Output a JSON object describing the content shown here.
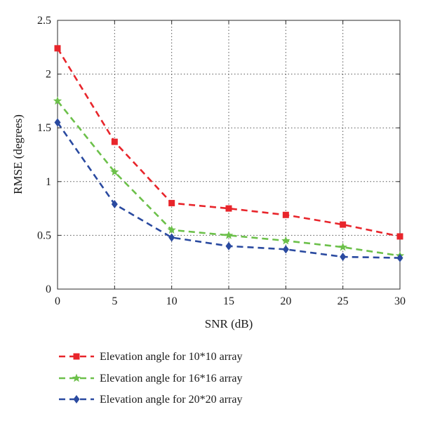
{
  "chart_data": {
    "type": "line",
    "title": "",
    "xlabel": "SNR (dB)",
    "ylabel": "RMSE (degrees)",
    "xlim": [
      0,
      30
    ],
    "ylim": [
      0,
      2.5
    ],
    "x": [
      0,
      5,
      10,
      15,
      20,
      25,
      30
    ],
    "xticks": [
      "0",
      "5",
      "10",
      "15",
      "20",
      "25",
      "30"
    ],
    "yticks": [
      "0",
      "0.5",
      "1",
      "1.5",
      "2",
      "2.5"
    ],
    "grid": true,
    "legend_position": "bottom",
    "series": [
      {
        "name": "Elevation angle for 10*10 array",
        "color": "#e8252b",
        "marker": "square",
        "values": [
          2.24,
          1.37,
          0.8,
          0.75,
          0.69,
          0.6,
          0.49
        ]
      },
      {
        "name": "Elevation angle for 16*16 array",
        "color": "#6cc04a",
        "marker": "star",
        "values": [
          1.75,
          1.09,
          0.55,
          0.5,
          0.45,
          0.39,
          0.31
        ]
      },
      {
        "name": "Elevation angle for 20*20 array",
        "color": "#2a4aa0",
        "marker": "diamond",
        "values": [
          1.55,
          0.79,
          0.48,
          0.4,
          0.37,
          0.3,
          0.29
        ]
      }
    ]
  }
}
